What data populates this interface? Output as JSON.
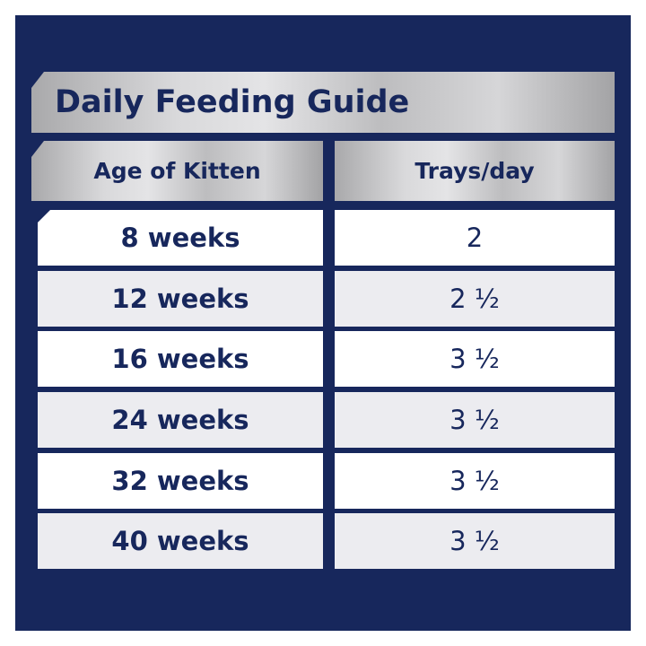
{
  "title": "Daily Feeding Guide",
  "columns": [
    "Age of Kitten",
    "Trays/day"
  ],
  "rows": [
    {
      "age": "8 weeks",
      "trays": "2"
    },
    {
      "age": "12 weeks",
      "trays": "2 ½"
    },
    {
      "age": "16 weeks",
      "trays": "3 ½"
    },
    {
      "age": "24 weeks",
      "trays": "3 ½"
    },
    {
      "age": "32 weeks",
      "trays": "3 ½"
    },
    {
      "age": "40 weeks",
      "trays": "3 ½"
    }
  ],
  "colors": {
    "navy": "#17275c",
    "row_alt": "#ececf0"
  }
}
